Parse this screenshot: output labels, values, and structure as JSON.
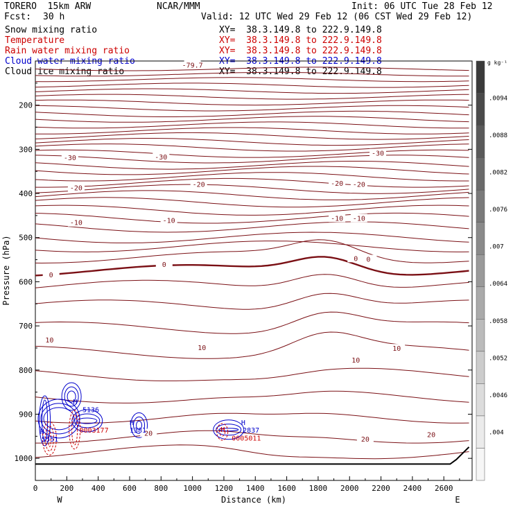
{
  "header": {
    "model": "TORERO  15km ARW",
    "org": "NCAR/MMM",
    "init": "Init: 06 UTC Tue 28 Feb 12",
    "fcst_label": "Fcst:",
    "fcst_value": "30 h",
    "valid": "Valid: 12 UTC Wed 29 Feb 12 (06 CST Wed 29 Feb 12)"
  },
  "fields": [
    {
      "label": "Snow mixing ratio",
      "color": "#000000",
      "xy": "XY=  38.3.149.8 to 222.9.149.8",
      "xy_color": "#000000"
    },
    {
      "label": "Temperature",
      "color": "#cc0000",
      "xy": "XY=  38.3.149.8 to 222.9.149.8",
      "xy_color": "#cc0000"
    },
    {
      "label": "Rain water mixing ratio",
      "color": "#cc0000",
      "xy": "XY=  38.3.149.8 to 222.9.149.8",
      "xy_color": "#cc0000"
    },
    {
      "label": "Cloud water mixing ratio",
      "color": "#0000cc",
      "xy": "XY=  38.3.149.8 to 222.9.149.8",
      "xy_color": "#0000cc"
    },
    {
      "label": "Cloud ice mixing ratio",
      "color": "#000000",
      "xy": "XY=  38.3.149.8 to 222.9.149.8",
      "xy_color": "#000000"
    }
  ],
  "chart_data": {
    "type": "contour cross-section",
    "xlabel": "Distance (km)",
    "ylabel": "Pressure (hPa)",
    "xlim": [
      0,
      2780
    ],
    "ylim": [
      1050,
      100
    ],
    "x_ticks": [
      0,
      200,
      400,
      600,
      800,
      1000,
      1200,
      1400,
      1600,
      1800,
      2000,
      2200,
      2400,
      2600
    ],
    "y_ticks": [
      200,
      300,
      400,
      500,
      600,
      700,
      800,
      900,
      1000
    ],
    "x_end_labels": {
      "left": "W",
      "right": "E"
    },
    "colorbar": {
      "unit": "g kg⁻¹",
      "ticks": [
        ".0094",
        ".0088",
        ".0082",
        ".0076",
        ".007",
        ".0064",
        ".0058",
        ".0052",
        ".0046",
        ".004"
      ],
      "bands": [
        "#3a3a3a",
        "#4a4a4a",
        "#5a5a5a",
        "#6a6a6a",
        "#7a7a7a",
        "#8a8a8a",
        "#9a9a9a",
        "#aaaaaa",
        "#bbbbbb",
        "#cccccc",
        "#dcdcdc",
        "#ebebeb",
        "#f6f6f6"
      ]
    },
    "temperature_labels": [
      {
        "text": "-79.7",
        "x": 1000,
        "p": 110
      },
      {
        "text": "-30",
        "x": 220,
        "p": 320
      },
      {
        "text": "-30",
        "x": 800,
        "p": 318
      },
      {
        "text": "-30",
        "x": 2180,
        "p": 310
      },
      {
        "text": "-20",
        "x": 260,
        "p": 388
      },
      {
        "text": "-20",
        "x": 1040,
        "p": 380
      },
      {
        "text": "-20",
        "x": 1920,
        "p": 378
      },
      {
        "text": "-20",
        "x": 2060,
        "p": 380
      },
      {
        "text": "-10",
        "x": 260,
        "p": 467
      },
      {
        "text": "-10",
        "x": 850,
        "p": 462
      },
      {
        "text": "-10",
        "x": 1920,
        "p": 457
      },
      {
        "text": "-10",
        "x": 2060,
        "p": 457
      },
      {
        "text": "0",
        "x": 100,
        "p": 585
      },
      {
        "text": "0",
        "x": 820,
        "p": 562
      },
      {
        "text": "0",
        "x": 2040,
        "p": 548
      },
      {
        "text": "0",
        "x": 2120,
        "p": 550
      },
      {
        "text": "10",
        "x": 90,
        "p": 733
      },
      {
        "text": "10",
        "x": 1060,
        "p": 750
      },
      {
        "text": "10",
        "x": 2300,
        "p": 752
      },
      {
        "text": "10",
        "x": 2040,
        "p": 778
      },
      {
        "text": "20",
        "x": 720,
        "p": 944
      },
      {
        "text": "20",
        "x": 2100,
        "p": 957
      },
      {
        "text": "20",
        "x": 2520,
        "p": 947
      }
    ],
    "cloud_labels": [
      {
        "text": "H",
        "x": 30,
        "p": 945,
        "color": "#0000cc"
      },
      {
        "text": "5551",
        "x": 40,
        "p": 962,
        "color": "#0000cc"
      },
      {
        "text": "H",
        "x": 240,
        "p": 877,
        "color": "#0000cc"
      },
      {
        "text": "5136",
        "x": 300,
        "p": 895,
        "color": "#0000cc"
      },
      {
        "text": "H",
        "x": 600,
        "p": 924,
        "color": "#0000cc"
      },
      {
        "text": "1381",
        "x": 600,
        "p": 942,
        "color": "#0000cc"
      },
      {
        "text": "H",
        "x": 1310,
        "p": 924,
        "color": "#0000cc"
      },
      {
        "text": "2837",
        "x": 1320,
        "p": 942,
        "color": "#0000cc"
      },
      {
        "text": "H",
        "x": 1180,
        "p": 940,
        "color": "#cc0000"
      },
      {
        "text": "0003177",
        "x": 280,
        "p": 942,
        "color": "#cc0000"
      },
      {
        "text": "0005011",
        "x": 1250,
        "p": 960,
        "color": "#cc0000"
      }
    ]
  }
}
